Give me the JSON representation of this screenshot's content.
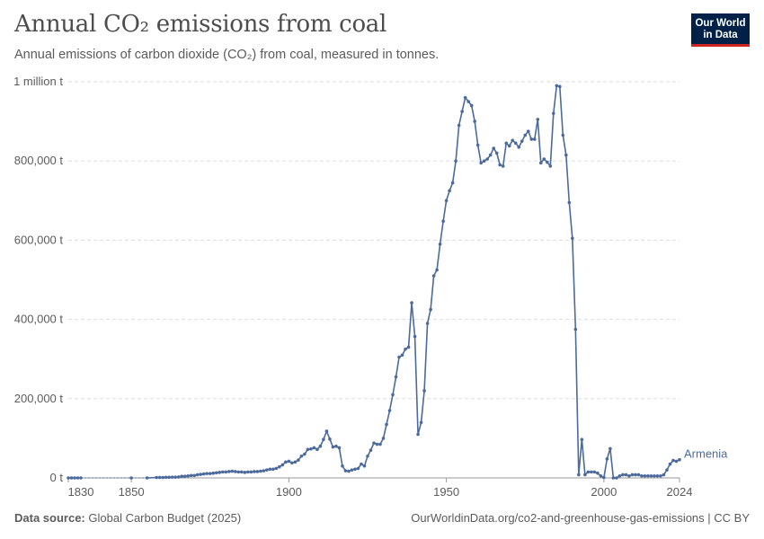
{
  "header": {
    "title": "Annual CO₂ emissions from coal",
    "subtitle": "Annual emissions of carbon dioxide (CO₂) from coal, measured in tonnes."
  },
  "logo": {
    "line1": "Our World",
    "line2": "in Data"
  },
  "footer": {
    "source_label": "Data source:",
    "source_value": "Global Carbon Budget (2025)",
    "url": "OurWorldinData.org/co2-and-greenhouse-gas-emissions | CC BY"
  },
  "colors": {
    "series": "#4c6a9c",
    "grid": "#dddddd",
    "text": "#5b5b5b"
  },
  "chart_data": {
    "type": "line",
    "title": "Annual CO₂ emissions from coal",
    "ylabel": "tonnes",
    "xlim": [
      1830,
      2024
    ],
    "ylim": [
      0,
      1000000
    ],
    "x_ticks": [
      1830,
      1850,
      1900,
      1950,
      2000,
      2024
    ],
    "y_ticks": [
      {
        "value": 0,
        "label": "0 t"
      },
      {
        "value": 200000,
        "label": "200,000 t"
      },
      {
        "value": 400000,
        "label": "400,000 t"
      },
      {
        "value": 600000,
        "label": "600,000 t"
      },
      {
        "value": 800000,
        "label": "800,000 t"
      },
      {
        "value": 1000000,
        "label": "1 million t"
      }
    ],
    "grid": true,
    "series": [
      {
        "name": "Armenia",
        "points": [
          [
            1830,
            0
          ],
          [
            1831,
            0
          ],
          [
            1832,
            0
          ],
          [
            1833,
            0
          ],
          [
            1834,
            0
          ],
          [
            1850,
            0
          ],
          [
            1855,
            0
          ],
          [
            1858,
            1000
          ],
          [
            1859,
            1000
          ],
          [
            1860,
            1000
          ],
          [
            1861,
            1500
          ],
          [
            1862,
            1500
          ],
          [
            1863,
            2000
          ],
          [
            1864,
            2000
          ],
          [
            1865,
            2500
          ],
          [
            1866,
            4000
          ],
          [
            1867,
            4000
          ],
          [
            1868,
            5000
          ],
          [
            1869,
            6000
          ],
          [
            1870,
            6000
          ],
          [
            1871,
            8000
          ],
          [
            1872,
            9000
          ],
          [
            1873,
            10000
          ],
          [
            1874,
            11000
          ],
          [
            1875,
            11000
          ],
          [
            1876,
            12000
          ],
          [
            1877,
            13000
          ],
          [
            1878,
            14000
          ],
          [
            1879,
            15000
          ],
          [
            1880,
            15000
          ],
          [
            1881,
            16000
          ],
          [
            1882,
            17000
          ],
          [
            1883,
            16000
          ],
          [
            1884,
            15000
          ],
          [
            1885,
            15000
          ],
          [
            1886,
            14000
          ],
          [
            1887,
            15000
          ],
          [
            1888,
            15000
          ],
          [
            1889,
            16000
          ],
          [
            1890,
            16000
          ],
          [
            1891,
            17000
          ],
          [
            1892,
            18000
          ],
          [
            1893,
            20000
          ],
          [
            1894,
            22000
          ],
          [
            1895,
            22000
          ],
          [
            1896,
            24000
          ],
          [
            1897,
            28000
          ],
          [
            1898,
            33000
          ],
          [
            1899,
            40000
          ],
          [
            1900,
            42000
          ],
          [
            1901,
            38000
          ],
          [
            1902,
            40000
          ],
          [
            1903,
            45000
          ],
          [
            1904,
            55000
          ],
          [
            1905,
            60000
          ],
          [
            1906,
            72000
          ],
          [
            1907,
            73000
          ],
          [
            1908,
            76000
          ],
          [
            1909,
            72000
          ],
          [
            1910,
            80000
          ],
          [
            1911,
            97000
          ],
          [
            1912,
            118000
          ],
          [
            1913,
            98000
          ],
          [
            1914,
            78000
          ],
          [
            1915,
            80000
          ],
          [
            1916,
            76000
          ],
          [
            1917,
            30000
          ],
          [
            1918,
            18000
          ],
          [
            1919,
            17000
          ],
          [
            1920,
            20000
          ],
          [
            1921,
            22000
          ],
          [
            1922,
            24000
          ],
          [
            1923,
            35000
          ],
          [
            1924,
            30000
          ],
          [
            1925,
            55000
          ],
          [
            1926,
            70000
          ],
          [
            1927,
            88000
          ],
          [
            1928,
            85000
          ],
          [
            1929,
            85000
          ],
          [
            1930,
            100000
          ],
          [
            1931,
            135000
          ],
          [
            1932,
            170000
          ],
          [
            1933,
            210000
          ],
          [
            1934,
            255000
          ],
          [
            1935,
            305000
          ],
          [
            1936,
            310000
          ],
          [
            1937,
            325000
          ],
          [
            1938,
            330000
          ],
          [
            1939,
            442000
          ],
          [
            1940,
            357000
          ],
          [
            1941,
            110000
          ],
          [
            1942,
            140000
          ],
          [
            1943,
            220000
          ],
          [
            1944,
            390000
          ],
          [
            1945,
            425000
          ],
          [
            1946,
            510000
          ],
          [
            1947,
            525000
          ],
          [
            1948,
            590000
          ],
          [
            1949,
            648000
          ],
          [
            1950,
            700000
          ],
          [
            1951,
            725000
          ],
          [
            1952,
            745000
          ],
          [
            1953,
            800000
          ],
          [
            1954,
            890000
          ],
          [
            1955,
            925000
          ],
          [
            1956,
            960000
          ],
          [
            1957,
            950000
          ],
          [
            1958,
            940000
          ],
          [
            1959,
            900000
          ],
          [
            1960,
            840000
          ],
          [
            1961,
            795000
          ],
          [
            1962,
            800000
          ],
          [
            1963,
            805000
          ],
          [
            1964,
            815000
          ],
          [
            1965,
            832000
          ],
          [
            1966,
            820000
          ],
          [
            1967,
            790000
          ],
          [
            1968,
            787000
          ],
          [
            1969,
            845000
          ],
          [
            1970,
            838000
          ],
          [
            1971,
            852000
          ],
          [
            1972,
            845000
          ],
          [
            1973,
            835000
          ],
          [
            1974,
            850000
          ],
          [
            1975,
            865000
          ],
          [
            1976,
            875000
          ],
          [
            1977,
            855000
          ],
          [
            1978,
            855000
          ],
          [
            1979,
            905000
          ],
          [
            1980,
            795000
          ],
          [
            1981,
            805000
          ],
          [
            1982,
            797000
          ],
          [
            1983,
            787000
          ],
          [
            1984,
            920000
          ],
          [
            1985,
            990000
          ],
          [
            1986,
            988000
          ],
          [
            1987,
            865000
          ],
          [
            1988,
            815000
          ],
          [
            1989,
            695000
          ],
          [
            1990,
            605000
          ],
          [
            1991,
            375000
          ],
          [
            1992,
            8000
          ],
          [
            1993,
            97000
          ],
          [
            1994,
            8000
          ],
          [
            1995,
            15000
          ],
          [
            1996,
            15000
          ],
          [
            1997,
            15000
          ],
          [
            1998,
            12000
          ],
          [
            1999,
            5000
          ],
          [
            2000,
            1000
          ],
          [
            2001,
            48000
          ],
          [
            2002,
            74000
          ],
          [
            2003,
            0
          ],
          [
            2004,
            0
          ],
          [
            2005,
            5000
          ],
          [
            2006,
            8000
          ],
          [
            2007,
            8000
          ],
          [
            2008,
            5000
          ],
          [
            2009,
            8000
          ],
          [
            2010,
            8000
          ],
          [
            2011,
            8000
          ],
          [
            2012,
            5000
          ],
          [
            2013,
            5000
          ],
          [
            2014,
            5000
          ],
          [
            2015,
            5000
          ],
          [
            2016,
            5000
          ],
          [
            2017,
            5000
          ],
          [
            2018,
            5000
          ],
          [
            2019,
            8000
          ],
          [
            2020,
            20000
          ],
          [
            2021,
            35000
          ],
          [
            2022,
            44000
          ],
          [
            2023,
            42000
          ],
          [
            2024,
            46000
          ]
        ]
      }
    ]
  }
}
